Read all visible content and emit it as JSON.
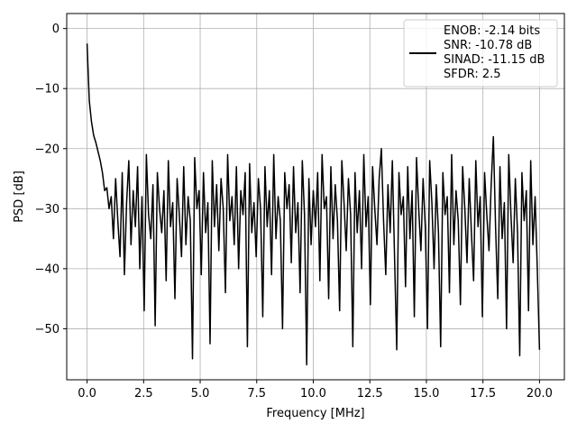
{
  "chart_data": {
    "type": "line",
    "title": "",
    "xlabel": "Frequency [MHz]",
    "ylabel": "PSD [dB]",
    "xlim": [
      -0.9,
      21.1
    ],
    "ylim": [
      -58.5,
      2.5
    ],
    "x_ticks": [
      0.0,
      2.5,
      5.0,
      7.5,
      10.0,
      12.5,
      15.0,
      17.5,
      20.0
    ],
    "x_tick_labels": [
      "0.0",
      "2.5",
      "5.0",
      "7.5",
      "10.0",
      "12.5",
      "15.0",
      "17.5",
      "20.0"
    ],
    "y_ticks": [
      0,
      -10,
      -20,
      -30,
      -40,
      -50
    ],
    "y_tick_labels": [
      "0",
      "−10",
      "−20",
      "−30",
      "−40",
      "−50"
    ],
    "grid": true,
    "legend_position": "top-right",
    "legend_entries": [
      "ENOB: -2.14 bits",
      "SNR: -10.78 dB",
      "SINAD: -11.15 dB",
      "SFDR: 2.5"
    ],
    "line_color": "#000000",
    "series": [
      {
        "x_start": 0.0,
        "x_end": 20.0,
        "values": [
          -2.5,
          -12.0,
          -15.5,
          -17.8,
          -19.0,
          -20.5,
          -22.0,
          -24.0,
          -27.0,
          -26.5,
          -30.0,
          -28.0,
          -35.0,
          -25.0,
          -32.0,
          -38.0,
          -24.0,
          -41.0,
          -29.0,
          -22.0,
          -36.0,
          -27.0,
          -33.0,
          -23.0,
          -40.0,
          -28.0,
          -47.0,
          -21.0,
          -31.0,
          -35.0,
          -26.0,
          -49.5,
          -24.0,
          -30.0,
          -34.0,
          -27.0,
          -42.0,
          -22.0,
          -33.0,
          -29.0,
          -45.0,
          -25.0,
          -31.0,
          -38.0,
          -23.0,
          -36.0,
          -28.0,
          -32.0,
          -55.0,
          -21.5,
          -30.0,
          -27.0,
          -41.0,
          -24.0,
          -34.0,
          -29.0,
          -52.5,
          -22.0,
          -33.0,
          -26.0,
          -37.0,
          -25.0,
          -30.0,
          -44.0,
          -21.0,
          -32.0,
          -28.0,
          -36.0,
          -23.0,
          -40.0,
          -27.0,
          -31.0,
          -24.0,
          -53.0,
          -22.5,
          -34.0,
          -29.0,
          -38.0,
          -25.0,
          -30.0,
          -48.0,
          -23.0,
          -33.0,
          -27.0,
          -41.0,
          -21.0,
          -35.0,
          -28.0,
          -32.0,
          -50.0,
          -24.0,
          -30.0,
          -26.0,
          -39.0,
          -23.0,
          -34.0,
          -29.0,
          -44.0,
          -22.0,
          -31.0,
          -56.0,
          -25.0,
          -36.0,
          -27.0,
          -33.0,
          -24.0,
          -42.0,
          -21.0,
          -30.0,
          -28.0,
          -45.0,
          -23.0,
          -35.0,
          -26.0,
          -32.0,
          -47.0,
          -22.0,
          -29.0,
          -37.0,
          -25.0,
          -31.0,
          -53.0,
          -24.0,
          -34.0,
          -27.0,
          -40.0,
          -21.0,
          -33.0,
          -28.0,
          -46.0,
          -23.0,
          -30.0,
          -36.0,
          -25.0,
          -20.0,
          -32.0,
          -41.0,
          -26.0,
          -34.0,
          -22.0,
          -38.0,
          -53.5,
          -24.0,
          -31.0,
          -28.0,
          -43.0,
          -23.0,
          -35.0,
          -27.0,
          -48.0,
          -21.5,
          -30.0,
          -37.0,
          -25.0,
          -33.0,
          -50.0,
          -22.0,
          -29.0,
          -40.0,
          -26.0,
          -34.0,
          -53.0,
          -24.0,
          -31.0,
          -28.0,
          -44.0,
          -21.0,
          -36.0,
          -27.0,
          -32.0,
          -46.0,
          -23.0,
          -30.0,
          -39.0,
          -25.0,
          -34.0,
          -42.0,
          -22.0,
          -33.0,
          -28.0,
          -48.0,
          -24.0,
          -31.0,
          -37.0,
          -26.0,
          -18.0,
          -33.0,
          -45.0,
          -23.0,
          -35.0,
          -29.0,
          -50.0,
          -21.0,
          -31.0,
          -39.0,
          -25.0,
          -34.0,
          -54.5,
          -24.0,
          -32.0,
          -27.0,
          -47.0,
          -22.0,
          -36.0,
          -28.0,
          -40.0,
          -53.5
        ]
      }
    ]
  }
}
